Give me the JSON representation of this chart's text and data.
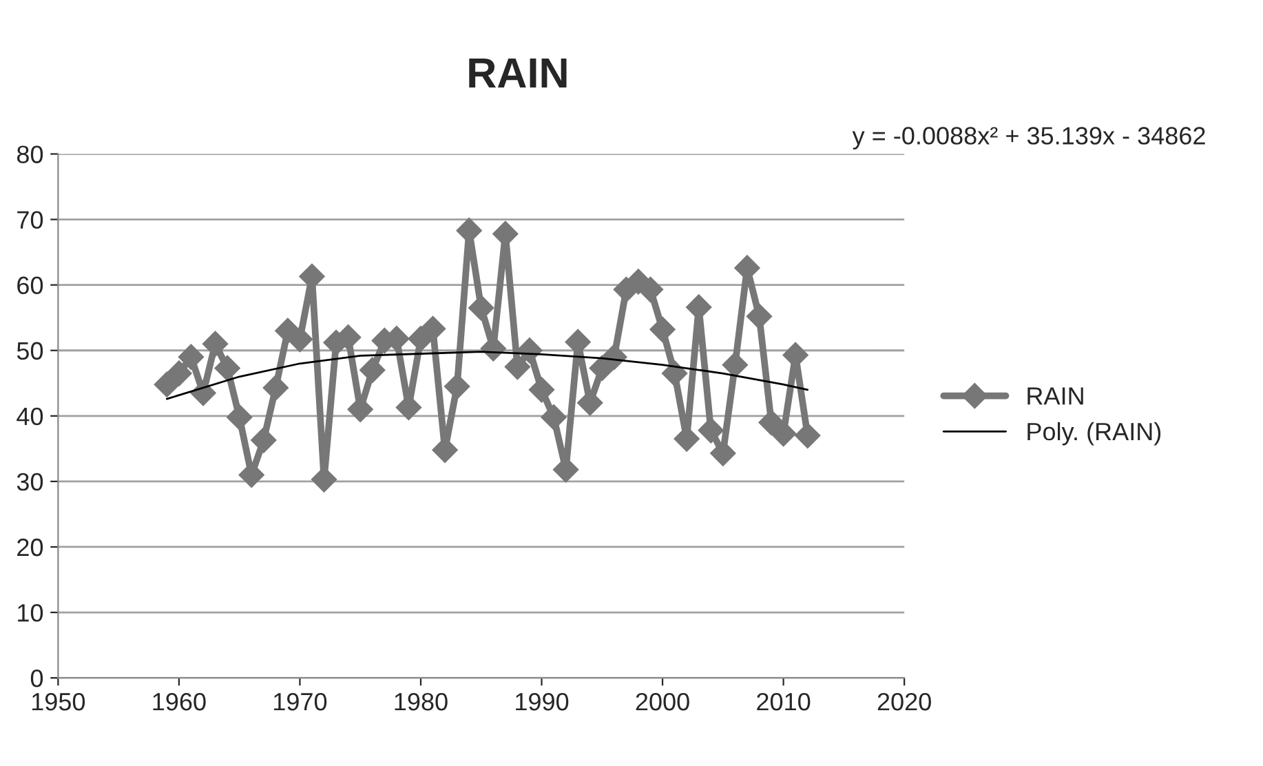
{
  "chart_data": {
    "type": "line",
    "title": "RAIN",
    "x": [
      1959,
      1960,
      1961,
      1962,
      1963,
      1964,
      1965,
      1966,
      1967,
      1968,
      1969,
      1970,
      1971,
      1972,
      1973,
      1974,
      1975,
      1976,
      1977,
      1978,
      1979,
      1980,
      1981,
      1982,
      1983,
      1984,
      1985,
      1986,
      1987,
      1988,
      1989,
      1990,
      1991,
      1992,
      1993,
      1994,
      1995,
      1996,
      1997,
      1998,
      1999,
      2000,
      2001,
      2002,
      2003,
      2004,
      2005,
      2006,
      2007,
      2008,
      2009,
      2010,
      2011,
      2012
    ],
    "series": [
      {
        "name": "RAIN",
        "color": "#777777",
        "marker": "diamond",
        "values": [
          44.8,
          46.5,
          49,
          43.5,
          51,
          47.3,
          39.8,
          31,
          36.3,
          44.3,
          53,
          51.7,
          61.3,
          30.3,
          51.2,
          52,
          41,
          47,
          51.5,
          51.8,
          41.3,
          51.8,
          53.3,
          34.8,
          44.5,
          68.3,
          56.5,
          50.3,
          67.8,
          47.5,
          50,
          44,
          39.8,
          31.8,
          51.3,
          42,
          47.3,
          49,
          59.3,
          60.5,
          59.3,
          53.2,
          46.5,
          36.5,
          56.6,
          37.8,
          34.3,
          47.8,
          62.6,
          55.2,
          39,
          37.3,
          49.3,
          37
        ]
      },
      {
        "name": "Poly. (RAIN)",
        "color": "#000000",
        "marker": "none",
        "x": [
          1959,
          1965,
          1970,
          1975,
          1980,
          1985,
          1990,
          1995,
          2000,
          2005,
          2010,
          2012
        ],
        "values": [
          42.6,
          46,
          48,
          49.2,
          49.5,
          49.8,
          49.4,
          48.8,
          47.8,
          46.5,
          44.8,
          44
        ]
      }
    ],
    "annotations": [
      "y = -0.0088x² + 35.139x - 34862"
    ],
    "xlim": [
      1950,
      2020
    ],
    "xticks": [
      1950,
      1960,
      1970,
      1980,
      1990,
      2000,
      2010,
      2020
    ],
    "ylim": [
      0,
      80
    ],
    "yticks": [
      0,
      10,
      20,
      30,
      40,
      50,
      60,
      70,
      80
    ],
    "grid": "y",
    "legend": "right"
  }
}
